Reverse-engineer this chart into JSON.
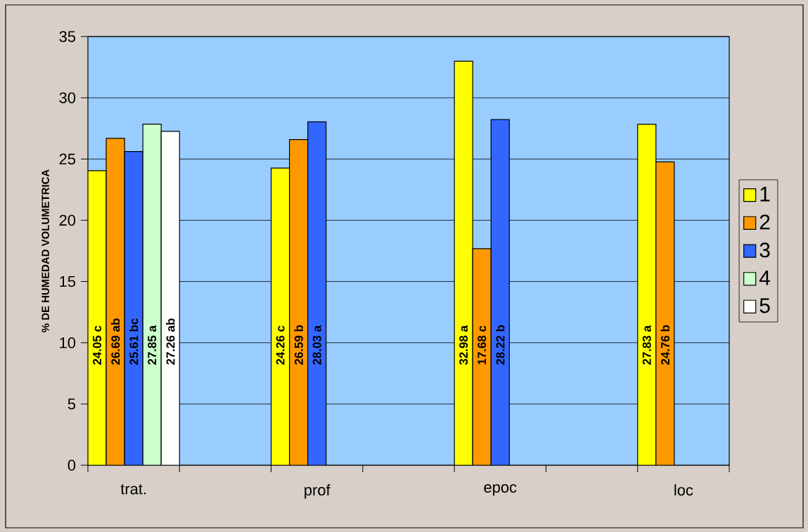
{
  "chart_data": {
    "type": "bar",
    "ylabel": "% DE HUMEDAD VOLUMETRICA",
    "categories": [
      "trat.",
      null,
      "prof",
      null,
      "epoc",
      null,
      "loc"
    ],
    "series": [
      {
        "name": "1",
        "color": "#ffff00",
        "values": [
          24.05,
          null,
          24.26,
          null,
          32.98,
          null,
          27.83
        ],
        "value_labels": [
          "24.05 c",
          null,
          "24.26 c",
          null,
          "32.98 a",
          null,
          "27.83 a"
        ]
      },
      {
        "name": "2",
        "color": "#ff9900",
        "values": [
          26.69,
          null,
          26.59,
          null,
          17.68,
          null,
          24.76
        ],
        "value_labels": [
          "26.69 ab",
          null,
          "26.59 b",
          null,
          "17.68 c",
          null,
          "24.76 b"
        ]
      },
      {
        "name": "3",
        "color": "#3366ff",
        "values": [
          25.61,
          null,
          28.03,
          null,
          28.22,
          null,
          null
        ],
        "value_labels": [
          "25.61 bc",
          null,
          "28.03 a",
          null,
          "28.22 b",
          null,
          null
        ]
      },
      {
        "name": "4",
        "color": "#ccffcc",
        "values": [
          27.85,
          null,
          null,
          null,
          null,
          null,
          null
        ],
        "value_labels": [
          "27.85 a",
          null,
          null,
          null,
          null,
          null,
          null
        ]
      },
      {
        "name": "5",
        "color": "#ffffff",
        "values": [
          27.26,
          null,
          null,
          null,
          null,
          null,
          null
        ],
        "value_labels": [
          "27.26 ab",
          null,
          null,
          null,
          null,
          null,
          null
        ]
      }
    ],
    "ylim": [
      0,
      35
    ],
    "yticks": [
      0,
      5,
      10,
      15,
      20,
      25,
      30,
      35
    ],
    "grid": "y",
    "legend": "right"
  }
}
